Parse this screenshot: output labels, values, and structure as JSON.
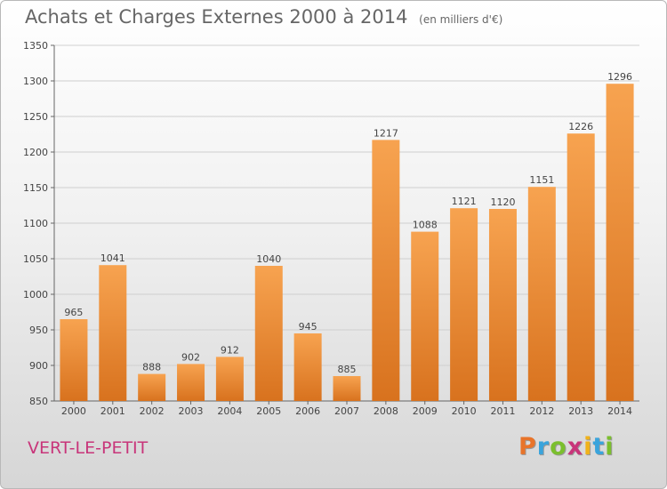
{
  "chart_data": {
    "type": "bar",
    "title": "Achats et Charges Externes 2000 à 2014",
    "subtitle": "(en milliers d'€)",
    "categories": [
      "2000",
      "2001",
      "2002",
      "2003",
      "2004",
      "2005",
      "2006",
      "2007",
      "2008",
      "2009",
      "2010",
      "2011",
      "2012",
      "2013",
      "2014"
    ],
    "values": [
      965,
      1041,
      888,
      902,
      912,
      1040,
      945,
      885,
      1217,
      1088,
      1121,
      1120,
      1151,
      1226,
      1296
    ],
    "ylim": [
      850,
      1350
    ],
    "yticks": [
      850,
      900,
      950,
      1000,
      1050,
      1100,
      1150,
      1200,
      1250,
      1300,
      1350
    ],
    "grid": true,
    "bar_color": "#f0913a"
  },
  "footer": {
    "location": "VERT-LE-PETIT",
    "logo_letters": [
      "P",
      "r",
      "o",
      "x",
      "i",
      "t",
      "i"
    ],
    "logo_colors": [
      "#e8742a",
      "#3aa4dc",
      "#7bbf2e",
      "#c8357a",
      "#f0b21a",
      "#3aa4dc",
      "#7bbf2e"
    ]
  }
}
